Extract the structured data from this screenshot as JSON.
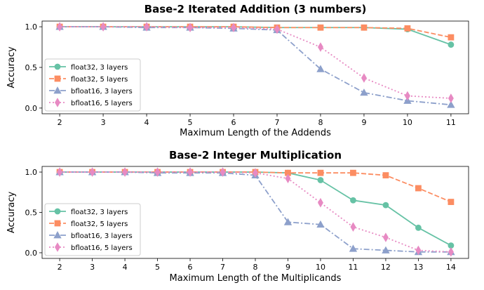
{
  "chart_data": [
    {
      "type": "line",
      "title": "Base-2 Iterated Addition (3 numbers)",
      "xlabel": "Maximum Length of the Addends",
      "ylabel": "Accuracy",
      "x": [
        2,
        3,
        4,
        5,
        6,
        7,
        8,
        9,
        10,
        11
      ],
      "xticks": [
        "2",
        "3",
        "4",
        "5",
        "6",
        "7",
        "8",
        "9",
        "10",
        "11"
      ],
      "yticks": [
        "0.0",
        "0.5",
        "1.0"
      ],
      "ylim": [
        -0.07,
        1.07
      ],
      "legend": "bottom-left",
      "series": [
        {
          "name": "float32, 3 layers",
          "color": "#66c2a5",
          "marker": "circle",
          "dash": "solid",
          "values": [
            1,
            1,
            1,
            1,
            1,
            0.99,
            0.99,
            0.99,
            0.97,
            0.78
          ]
        },
        {
          "name": "float32, 5 layers",
          "color": "#fc8d62",
          "marker": "square",
          "dash": "dashed",
          "values": [
            1,
            1,
            1,
            1,
            1,
            0.99,
            0.99,
            0.99,
            0.98,
            0.87
          ]
        },
        {
          "name": "bfloat16, 3 layers",
          "color": "#8da0cb",
          "marker": "triangle",
          "dash": "dashdot",
          "values": [
            1,
            1,
            0.99,
            0.99,
            0.98,
            0.96,
            0.48,
            0.19,
            0.09,
            0.04
          ]
        },
        {
          "name": "bfloat16, 5 layers",
          "color": "#e78ac3",
          "marker": "diamond",
          "dash": "dotted",
          "values": [
            1,
            1,
            1,
            0.99,
            0.99,
            0.97,
            0.75,
            0.37,
            0.15,
            0.12
          ]
        }
      ]
    },
    {
      "type": "line",
      "title": "Base-2 Integer Multiplication",
      "xlabel": "Maximum Length of the Multiplicands",
      "ylabel": "Accuracy",
      "x": [
        2,
        3,
        4,
        5,
        6,
        7,
        8,
        9,
        10,
        11,
        12,
        13,
        14
      ],
      "xticks": [
        "2",
        "3",
        "4",
        "5",
        "6",
        "7",
        "8",
        "9",
        "10",
        "11",
        "12",
        "13",
        "14"
      ],
      "yticks": [
        "0.0",
        "0.5",
        "1.0"
      ],
      "ylim": [
        -0.07,
        1.07
      ],
      "legend": "bottom-left",
      "series": [
        {
          "name": "float32, 3 layers",
          "color": "#66c2a5",
          "marker": "circle",
          "dash": "solid",
          "values": [
            1,
            1,
            1,
            1,
            1,
            1,
            1,
            0.99,
            0.9,
            0.65,
            0.59,
            0.31,
            0.09
          ]
        },
        {
          "name": "float32, 5 layers",
          "color": "#fc8d62",
          "marker": "square",
          "dash": "dashed",
          "values": [
            1,
            1,
            1,
            1,
            1,
            1,
            1,
            0.99,
            0.99,
            0.99,
            0.96,
            0.8,
            0.63
          ]
        },
        {
          "name": "bfloat16, 3 layers",
          "color": "#8da0cb",
          "marker": "triangle",
          "dash": "dashdot",
          "values": [
            1,
            1,
            1,
            0.99,
            0.99,
            0.99,
            0.96,
            0.38,
            0.35,
            0.05,
            0.03,
            0.01,
            0.01
          ]
        },
        {
          "name": "bfloat16, 5 layers",
          "color": "#e78ac3",
          "marker": "diamond",
          "dash": "dotted",
          "values": [
            1,
            1,
            1,
            1,
            1,
            1,
            0.99,
            0.92,
            0.62,
            0.32,
            0.19,
            0.03,
            0.01
          ]
        }
      ]
    }
  ]
}
